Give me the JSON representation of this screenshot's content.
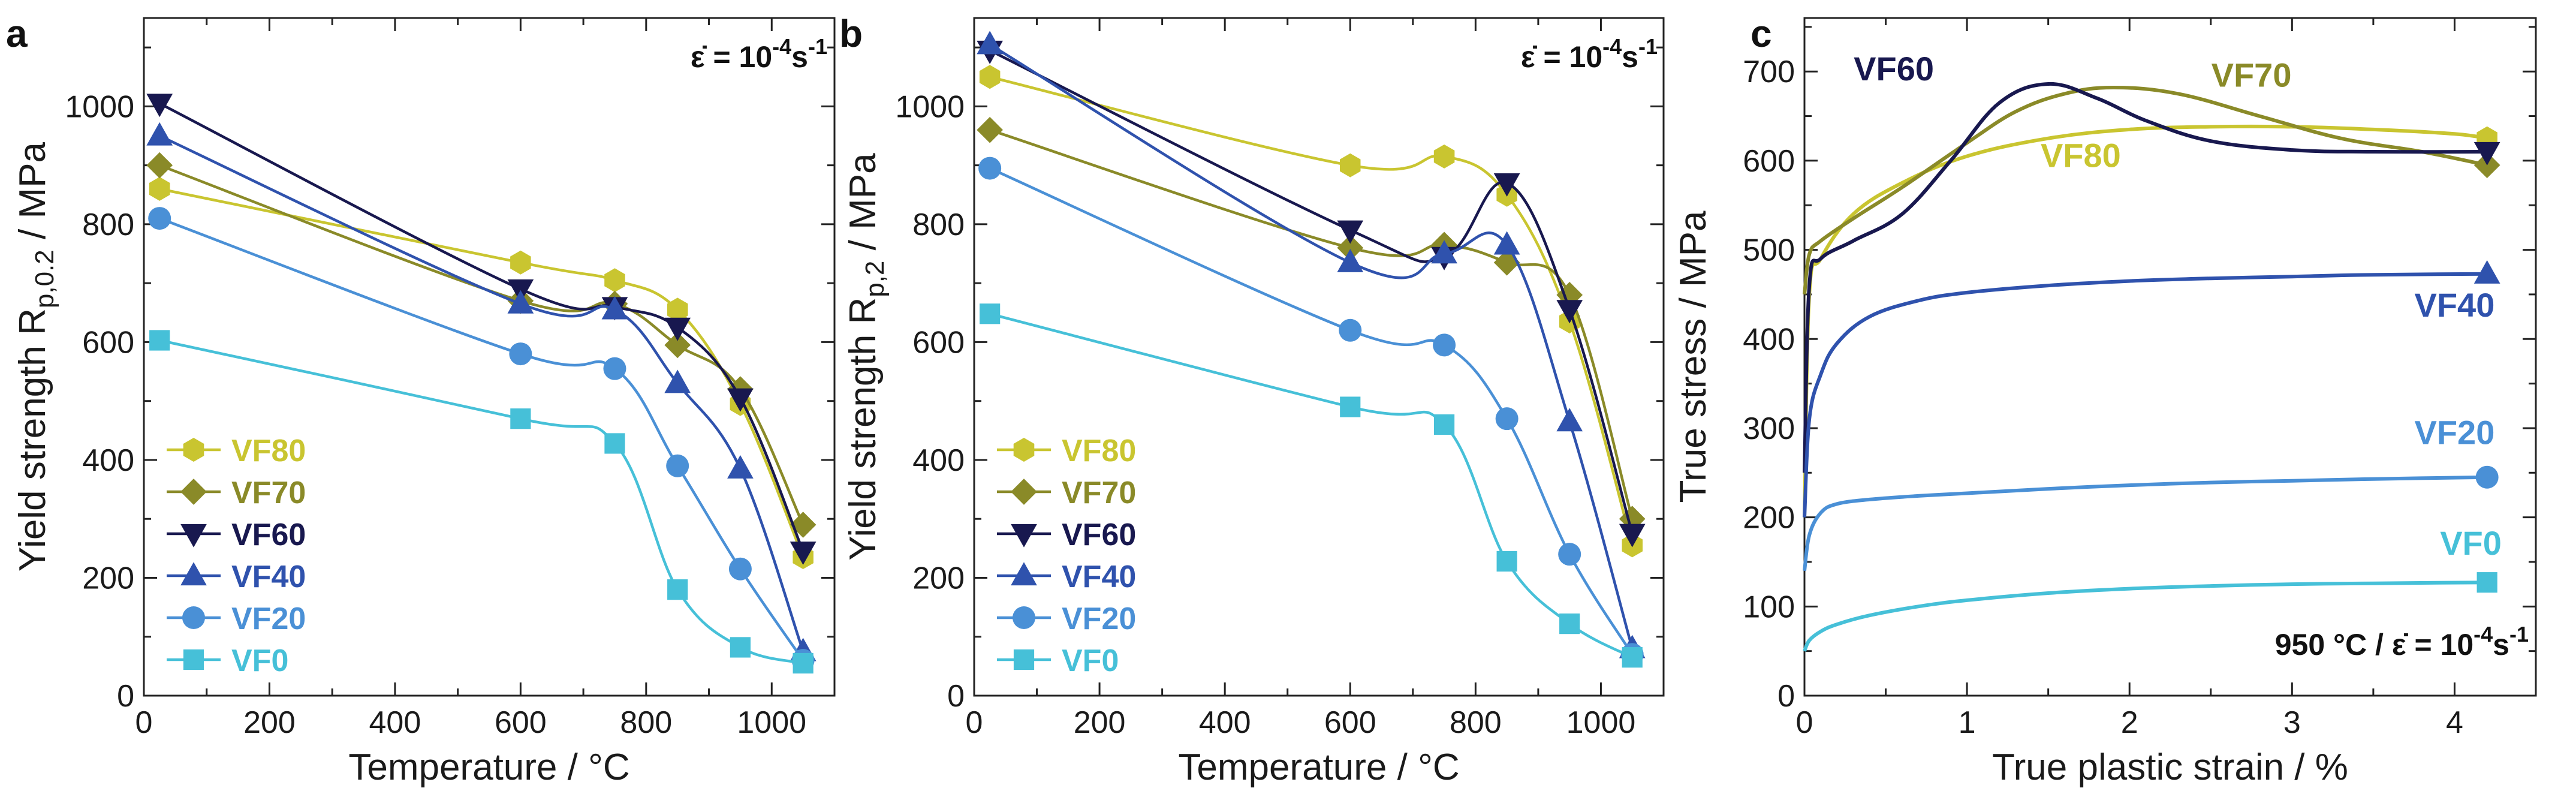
{
  "figure": {
    "colors": {
      "VF80": "#c9c530",
      "VF70": "#8a8a28",
      "VF60": "#18184f",
      "VF40": "#2f52ad",
      "VF20": "#4a90d6",
      "VF0": "#46c0d8"
    }
  },
  "chart_data": [
    {
      "panel": "a",
      "type": "line",
      "xlabel": "Temperature / °C",
      "ylabel_main": "Yield strength R",
      "ylabel_sub": "p,0.2",
      "ylabel_tail": " / MPa",
      "xlim": [
        0,
        1100
      ],
      "ylim": [
        0,
        1150
      ],
      "xticks": [
        0,
        200,
        400,
        600,
        800,
        1000
      ],
      "yticks": [
        0,
        200,
        400,
        600,
        800,
        1000
      ],
      "annotation": {
        "base": "ε̇ = 10",
        "exp": "-4",
        "unit": "s",
        "unit_exp": "-1"
      },
      "legend_position": "bottom-left",
      "series": [
        {
          "name": "VF80",
          "marker": "hexagon",
          "x": [
            25,
            600,
            750,
            850,
            950,
            1050
          ],
          "y": [
            860,
            735,
            705,
            655,
            495,
            235
          ]
        },
        {
          "name": "VF70",
          "marker": "diamond",
          "x": [
            25,
            600,
            750,
            850,
            950,
            1050
          ],
          "y": [
            900,
            670,
            665,
            595,
            520,
            290
          ]
        },
        {
          "name": "VF60",
          "marker": "triangle-down",
          "x": [
            25,
            600,
            750,
            850,
            950,
            1050
          ],
          "y": [
            1005,
            690,
            660,
            625,
            505,
            245
          ]
        },
        {
          "name": "VF40",
          "marker": "triangle-up",
          "x": [
            25,
            600,
            750,
            850,
            950,
            1050
          ],
          "y": [
            950,
            665,
            655,
            530,
            385,
            75
          ]
        },
        {
          "name": "VF20",
          "marker": "circle",
          "x": [
            25,
            600,
            750,
            850,
            950,
            1050
          ],
          "y": [
            810,
            580,
            555,
            390,
            215,
            60
          ]
        },
        {
          "name": "VF0",
          "marker": "square",
          "x": [
            25,
            600,
            750,
            850,
            950,
            1050
          ],
          "y": [
            603,
            470,
            428,
            180,
            82,
            55
          ]
        }
      ]
    },
    {
      "panel": "b",
      "type": "line",
      "xlabel": "Temperature / °C",
      "ylabel_main": "Yield strength R",
      "ylabel_sub": "p,2",
      "ylabel_tail": " / MPa",
      "xlim": [
        0,
        1100
      ],
      "ylim": [
        0,
        1150
      ],
      "xticks": [
        0,
        200,
        400,
        600,
        800,
        1000
      ],
      "yticks": [
        0,
        200,
        400,
        600,
        800,
        1000
      ],
      "annotation": {
        "base": "ε̇ = 10",
        "exp": "-4",
        "unit": "s",
        "unit_exp": "-1"
      },
      "legend_position": "bottom-left",
      "series": [
        {
          "name": "VF80",
          "marker": "hexagon",
          "x": [
            25,
            600,
            750,
            850,
            950,
            1050
          ],
          "y": [
            1050,
            900,
            915,
            850,
            635,
            255
          ]
        },
        {
          "name": "VF70",
          "marker": "diamond",
          "x": [
            25,
            600,
            750,
            850,
            950,
            1050
          ],
          "y": [
            960,
            760,
            765,
            735,
            680,
            300
          ]
        },
        {
          "name": "VF60",
          "marker": "triangle-down",
          "x": [
            25,
            600,
            750,
            850,
            950,
            1050
          ],
          "y": [
            1095,
            790,
            745,
            870,
            655,
            275
          ]
        },
        {
          "name": "VF40",
          "marker": "triangle-up",
          "x": [
            25,
            600,
            750,
            850,
            950,
            1050
          ],
          "y": [
            1105,
            735,
            750,
            765,
            465,
            80
          ]
        },
        {
          "name": "VF20",
          "marker": "circle",
          "x": [
            25,
            600,
            750,
            850,
            950,
            1050
          ],
          "y": [
            895,
            620,
            595,
            470,
            240,
            70
          ]
        },
        {
          "name": "VF0",
          "marker": "square",
          "x": [
            25,
            600,
            750,
            850,
            950,
            1050
          ],
          "y": [
            648,
            490,
            460,
            228,
            122,
            65
          ]
        }
      ]
    },
    {
      "panel": "c",
      "type": "line",
      "xlabel": "True plastic strain / %",
      "ylabel": "True stress / MPa",
      "xlim": [
        0,
        4.5
      ],
      "ylim": [
        0,
        760
      ],
      "xticks": [
        0,
        1,
        2,
        3,
        4
      ],
      "yticks": [
        0,
        100,
        200,
        300,
        400,
        500,
        600,
        700
      ],
      "annotation": {
        "base": "950 °C / ε̇ = 10",
        "exp": "-4",
        "unit": "s",
        "unit_exp": "-1"
      },
      "series": [
        {
          "name": "VF80",
          "marker": "hexagon",
          "x": [
            0,
            0.03,
            0.1,
            0.3,
            0.6,
            1.0,
            1.5,
            2.0,
            2.5,
            3.0,
            3.5,
            4.0,
            4.2
          ],
          "y": [
            200,
            450,
            490,
            540,
            575,
            605,
            625,
            635,
            638,
            638,
            635,
            630,
            625
          ]
        },
        {
          "name": "VF70",
          "marker": "diamond",
          "x": [
            0,
            0.03,
            0.1,
            0.3,
            0.6,
            1.0,
            1.3,
            1.6,
            1.9,
            2.3,
            2.8,
            3.3,
            3.8,
            4.2
          ],
          "y": [
            450,
            495,
            510,
            535,
            570,
            620,
            655,
            675,
            682,
            675,
            650,
            625,
            610,
            595
          ]
        },
        {
          "name": "VF60",
          "marker": "triangle-down",
          "x": [
            0,
            0.03,
            0.1,
            0.3,
            0.6,
            0.9,
            1.2,
            1.5,
            1.8,
            2.1,
            2.5,
            3.0,
            3.5,
            4.2
          ],
          "y": [
            250,
            460,
            490,
            510,
            540,
            600,
            665,
            686,
            670,
            645,
            622,
            612,
            610,
            610
          ]
        },
        {
          "name": "VF40",
          "marker": "triangle-up",
          "x": [
            0,
            0.03,
            0.1,
            0.2,
            0.4,
            0.7,
            1.0,
            1.5,
            2.0,
            2.5,
            3.0,
            3.5,
            4.2
          ],
          "y": [
            200,
            310,
            360,
            395,
            425,
            443,
            452,
            460,
            465,
            468,
            470,
            472,
            473
          ]
        },
        {
          "name": "VF20",
          "marker": "circle",
          "x": [
            0,
            0.03,
            0.1,
            0.2,
            0.4,
            0.7,
            1.0,
            1.5,
            2.0,
            2.5,
            3.0,
            3.5,
            4.2
          ],
          "y": [
            140,
            180,
            205,
            215,
            220,
            224,
            227,
            232,
            236,
            239,
            241,
            243,
            245
          ]
        },
        {
          "name": "VF0",
          "marker": "square",
          "x": [
            0,
            0.03,
            0.1,
            0.2,
            0.4,
            0.7,
            1.0,
            1.5,
            2.0,
            2.5,
            3.0,
            3.5,
            4.2
          ],
          "y": [
            50,
            62,
            72,
            80,
            90,
            100,
            107,
            115,
            120,
            123,
            125,
            126,
            127
          ]
        }
      ],
      "labels": [
        {
          "series": "VF60",
          "text": "VF60",
          "at": [
            0.55,
            690
          ]
        },
        {
          "series": "VF70",
          "text": "VF70",
          "at": [
            2.75,
            683
          ]
        },
        {
          "series": "VF80",
          "text": "VF80",
          "at": [
            1.7,
            593
          ]
        },
        {
          "series": "VF40",
          "text": "VF40",
          "at": [
            4.0,
            425
          ]
        },
        {
          "series": "VF20",
          "text": "VF20",
          "at": [
            4.0,
            282
          ]
        },
        {
          "series": "VF0",
          "text": "VF0",
          "at": [
            4.1,
            158
          ]
        }
      ]
    }
  ]
}
